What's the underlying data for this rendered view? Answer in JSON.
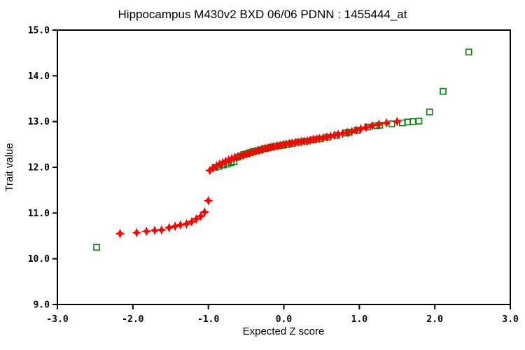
{
  "title": "Hippocampus M430v2 BXD 06/06 PDNN : 1455444_at",
  "chart_data": {
    "type": "scatter",
    "title": "Hippocampus M430v2 BXD 06/06 PDNN : 1455444_at",
    "xlabel": "Expected Z score",
    "ylabel": "Trait value",
    "xlim": [
      -3.0,
      3.0
    ],
    "ylim": [
      9.0,
      15.0
    ],
    "x_ticks": [
      -3.0,
      -2.0,
      -1.0,
      0.0,
      1.0,
      2.0,
      3.0
    ],
    "y_ticks": [
      9.0,
      10.0,
      11.0,
      12.0,
      13.0,
      14.0,
      15.0
    ],
    "grid": false,
    "legend": "none",
    "axis_color": "#000000",
    "background_color": "#ffffff",
    "series": [
      {
        "name": "green-open-squares",
        "marker": "open-square",
        "color": "#008000",
        "marker_size": 8,
        "points": [
          [
            -2.48,
            10.25
          ],
          [
            -0.91,
            12.0
          ],
          [
            -0.86,
            12.02
          ],
          [
            -0.8,
            12.05
          ],
          [
            -0.75,
            12.07
          ],
          [
            -0.7,
            12.1
          ],
          [
            -0.66,
            12.12
          ],
          [
            -0.62,
            12.22
          ],
          [
            -0.57,
            12.25
          ],
          [
            -0.53,
            12.28
          ],
          [
            -0.48,
            12.3
          ],
          [
            -0.44,
            12.32
          ],
          [
            -0.4,
            12.35
          ],
          [
            -0.35,
            12.36
          ],
          [
            -0.31,
            12.38
          ],
          [
            -0.26,
            12.41
          ],
          [
            -0.21,
            12.42
          ],
          [
            -0.16,
            12.44
          ],
          [
            -0.11,
            12.46
          ],
          [
            -0.06,
            12.47
          ],
          [
            -0.01,
            12.48
          ],
          [
            0.05,
            12.5
          ],
          [
            0.11,
            12.52
          ],
          [
            0.2,
            12.55
          ],
          [
            0.29,
            12.57
          ],
          [
            0.38,
            12.6
          ],
          [
            0.47,
            12.62
          ],
          [
            0.58,
            12.66
          ],
          [
            0.7,
            12.7
          ],
          [
            0.83,
            12.75
          ],
          [
            0.86,
            12.77
          ],
          [
            0.97,
            12.81
          ],
          [
            1.11,
            12.88
          ],
          [
            1.23,
            12.91
          ],
          [
            1.27,
            12.92
          ],
          [
            1.43,
            12.95
          ],
          [
            1.57,
            12.97
          ],
          [
            1.64,
            12.99
          ],
          [
            1.71,
            13.0
          ],
          [
            1.79,
            13.01
          ],
          [
            1.93,
            13.21
          ],
          [
            2.11,
            13.66
          ],
          [
            2.45,
            14.52
          ]
        ]
      },
      {
        "name": "red-filled-diamonds",
        "marker": "filled-diamond",
        "color": "#ff0000",
        "marker_size": 14,
        "points": [
          [
            -2.17,
            10.55
          ],
          [
            -1.95,
            10.57
          ],
          [
            -1.82,
            10.6
          ],
          [
            -1.71,
            10.62
          ],
          [
            -1.62,
            10.63
          ],
          [
            -1.52,
            10.68
          ],
          [
            -1.44,
            10.71
          ],
          [
            -1.37,
            10.74
          ],
          [
            -1.29,
            10.76
          ],
          [
            -1.22,
            10.81
          ],
          [
            -1.16,
            10.87
          ],
          [
            -1.1,
            10.93
          ],
          [
            -1.05,
            11.02
          ],
          [
            -1.0,
            11.27
          ],
          [
            -0.98,
            11.93
          ],
          [
            -0.94,
            11.98
          ],
          [
            -0.89,
            12.03
          ],
          [
            -0.85,
            12.07
          ],
          [
            -0.81,
            12.1
          ],
          [
            -0.77,
            12.13
          ],
          [
            -0.73,
            12.16
          ],
          [
            -0.69,
            12.19
          ],
          [
            -0.65,
            12.21
          ],
          [
            -0.61,
            12.23
          ],
          [
            -0.57,
            12.25
          ],
          [
            -0.53,
            12.27
          ],
          [
            -0.49,
            12.29
          ],
          [
            -0.45,
            12.31
          ],
          [
            -0.41,
            12.33
          ],
          [
            -0.37,
            12.35
          ],
          [
            -0.33,
            12.37
          ],
          [
            -0.29,
            12.39
          ],
          [
            -0.25,
            12.41
          ],
          [
            -0.21,
            12.42
          ],
          [
            -0.17,
            12.44
          ],
          [
            -0.13,
            12.45
          ],
          [
            -0.09,
            12.47
          ],
          [
            -0.05,
            12.48
          ],
          [
            -0.01,
            12.5
          ],
          [
            0.03,
            12.51
          ],
          [
            0.07,
            12.52
          ],
          [
            0.11,
            12.53
          ],
          [
            0.15,
            12.54
          ],
          [
            0.19,
            12.55
          ],
          [
            0.23,
            12.56
          ],
          [
            0.27,
            12.57
          ],
          [
            0.31,
            12.58
          ],
          [
            0.35,
            12.59
          ],
          [
            0.39,
            12.61
          ],
          [
            0.43,
            12.62
          ],
          [
            0.47,
            12.63
          ],
          [
            0.52,
            12.64
          ],
          [
            0.57,
            12.66
          ],
          [
            0.62,
            12.68
          ],
          [
            0.67,
            12.7
          ],
          [
            0.72,
            12.72
          ],
          [
            0.78,
            12.74
          ],
          [
            0.84,
            12.76
          ],
          [
            0.9,
            12.78
          ],
          [
            0.96,
            12.81
          ],
          [
            1.02,
            12.84
          ],
          [
            1.09,
            12.87
          ],
          [
            1.17,
            12.91
          ],
          [
            1.26,
            12.94
          ],
          [
            1.36,
            12.97
          ],
          [
            1.5,
            13.0
          ]
        ]
      }
    ]
  }
}
